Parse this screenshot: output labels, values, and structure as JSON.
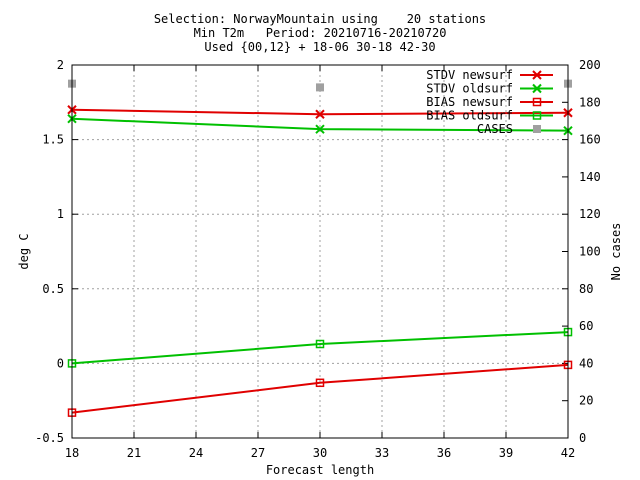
{
  "chart_data": {
    "type": "line",
    "title": [
      "Selection: NorwayMountain using    20 stations",
      "Min T2m   Period: 20210716-20210720",
      "Used {00,12} + 18-06 30-18 42-30"
    ],
    "xlabel": "Forecast length",
    "ylabel": "deg C",
    "y2label": "No cases",
    "x_ticks": [
      "18",
      "21",
      "24",
      "27",
      "30",
      "33",
      "36",
      "39",
      "42"
    ],
    "y_ticks": [
      "-0.5",
      "0",
      "0.5",
      "1",
      "1.5",
      "2"
    ],
    "y2_ticks": [
      "0",
      "20",
      "40",
      "60",
      "80",
      "100",
      "120",
      "140",
      "160",
      "180",
      "200"
    ],
    "xlim": [
      18,
      42
    ],
    "ylim": [
      -0.5,
      2
    ],
    "y2lim": [
      0,
      200
    ],
    "grid": true,
    "legend_position": "top-right",
    "x": [
      18,
      30,
      42
    ],
    "series": [
      {
        "name": "STDV newsurf",
        "axis": "y",
        "color": "#e00000",
        "marker": "x",
        "values": [
          1.7,
          1.67,
          1.68
        ]
      },
      {
        "name": "STDV oldsurf",
        "axis": "y",
        "color": "#00c000",
        "marker": "x",
        "values": [
          1.64,
          1.57,
          1.56
        ]
      },
      {
        "name": "BIAS newsurf",
        "axis": "y",
        "color": "#e00000",
        "marker": "square",
        "values": [
          -0.33,
          -0.13,
          -0.01
        ]
      },
      {
        "name": "BIAS oldsurf",
        "axis": "y",
        "color": "#00c000",
        "marker": "square",
        "values": [
          0.0,
          0.13,
          0.21
        ]
      },
      {
        "name": "CASES",
        "axis": "y2",
        "color": "#a0a0a0",
        "marker": "filled-square",
        "values": [
          190,
          188,
          190
        ]
      }
    ]
  }
}
